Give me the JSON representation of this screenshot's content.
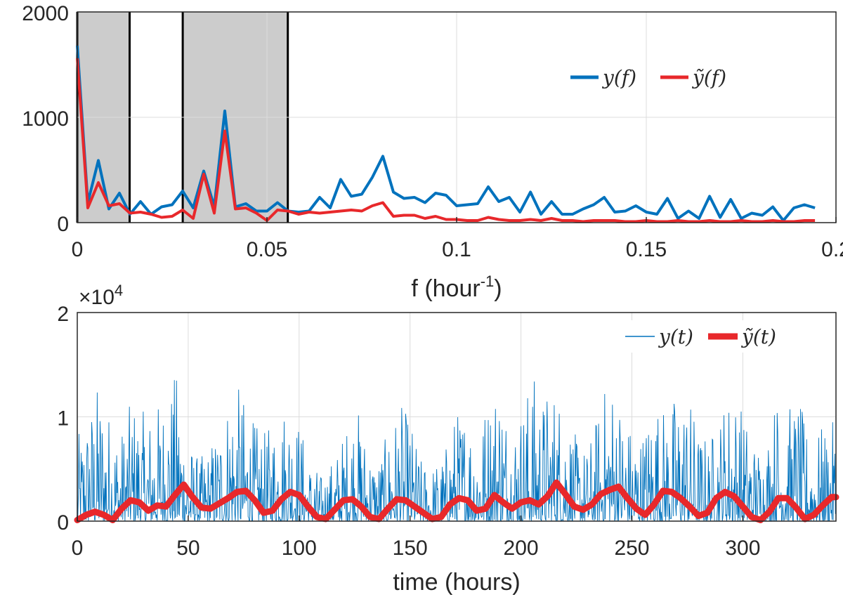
{
  "chart_data": [
    {
      "type": "line",
      "panel": "top",
      "xlabel": "f (hour",
      "xlabel_sup": "-1",
      "xlabel_close": ")",
      "xlim": [
        0,
        0.2
      ],
      "ylim": [
        0,
        2000
      ],
      "xticks": [
        0,
        0.05,
        0.1,
        0.15,
        0.2
      ],
      "xtick_labels": [
        "0",
        "0.05",
        "0.1",
        "0.15",
        "0.2"
      ],
      "yticks": [
        0,
        1000,
        2000
      ],
      "ytick_labels": [
        "0",
        "1000",
        "2000"
      ],
      "grid": true,
      "legend": "top-right",
      "legend_entries": [
        "y(f)",
        "ỹ(f)"
      ],
      "shaded_bands": [
        [
          0,
          0.0138
        ],
        [
          0.0278,
          0.0555
        ]
      ],
      "band_lines": [
        0,
        0.0138,
        0.0278,
        0.0555
      ],
      "x_step": 0.002778,
      "series": [
        {
          "name": "y(f)",
          "color": "#0072BD",
          "values": [
            1680,
            190,
            590,
            130,
            280,
            80,
            200,
            80,
            150,
            170,
            300,
            140,
            490,
            150,
            1060,
            150,
            180,
            110,
            110,
            190,
            110,
            100,
            110,
            240,
            140,
            410,
            250,
            270,
            430,
            630,
            290,
            230,
            240,
            190,
            280,
            260,
            160,
            170,
            180,
            340,
            200,
            240,
            100,
            290,
            80,
            200,
            80,
            80,
            130,
            170,
            240,
            100,
            110,
            160,
            100,
            80,
            230,
            40,
            110,
            40,
            250,
            50,
            220,
            40,
            90,
            70,
            150,
            20,
            140,
            170,
            140
          ]
        },
        {
          "name": "ỹ(f)",
          "color": "#E8282B",
          "values": [
            1560,
            140,
            380,
            160,
            180,
            90,
            100,
            80,
            50,
            60,
            120,
            40,
            460,
            90,
            870,
            130,
            140,
            90,
            20,
            120,
            110,
            80,
            100,
            90,
            100,
            110,
            120,
            110,
            160,
            190,
            60,
            70,
            70,
            40,
            60,
            30,
            30,
            20,
            20,
            50,
            30,
            20,
            20,
            30,
            20,
            40,
            20,
            20,
            10,
            20,
            20,
            20,
            10,
            10,
            20,
            10,
            10,
            20,
            10,
            10,
            20,
            10,
            10,
            20,
            10,
            10,
            20,
            10,
            10,
            20,
            20
          ]
        }
      ]
    },
    {
      "type": "line",
      "panel": "bottom",
      "xlabel": "time (hours)",
      "ylabel": "",
      "exponent_label": "×10",
      "exponent_sup": "4",
      "xlim": [
        0,
        342
      ],
      "ylim": [
        0,
        20000
      ],
      "xticks": [
        0,
        50,
        100,
        150,
        200,
        250,
        300
      ],
      "xtick_labels": [
        "0",
        "50",
        "100",
        "150",
        "200",
        "250",
        "300"
      ],
      "yticks": [
        0,
        10000,
        20000
      ],
      "ytick_labels": [
        "0",
        "1",
        "2"
      ],
      "grid": true,
      "legend": "top-right",
      "legend_entries": [
        "y(t)",
        "ỹ(t)"
      ],
      "series": [
        {
          "name": "y(t)",
          "color": "#0072BD",
          "x_step": 0.25,
          "envelope_hours": [
            0,
            5,
            10,
            15,
            20,
            25,
            30,
            35,
            40,
            45,
            50,
            55,
            60,
            65,
            70,
            75,
            80,
            85,
            90,
            95,
            100,
            105,
            110,
            115,
            120,
            125,
            130,
            135,
            140,
            145,
            150,
            155,
            160,
            165,
            170,
            175,
            180,
            185,
            190,
            195,
            200,
            205,
            210,
            215,
            220,
            225,
            230,
            235,
            240,
            245,
            250,
            255,
            260,
            265,
            270,
            275,
            280,
            285,
            290,
            295,
            300,
            305,
            310,
            315,
            320,
            325,
            330,
            335,
            340,
            342
          ],
          "envelope_values": [
            8000,
            11000,
            13800,
            10500,
            9000,
            12000,
            10500,
            11000,
            13000,
            14500,
            8000,
            6000,
            7500,
            10500,
            14000,
            12000,
            9500,
            8500,
            11000,
            12500,
            10000,
            6000,
            4500,
            6000,
            8500,
            12000,
            8500,
            6000,
            8500,
            11500,
            10000,
            6000,
            5500,
            6500,
            10500,
            11500,
            10000,
            12000,
            15300,
            10000,
            11500,
            14600,
            12500,
            13500,
            12000,
            8000,
            7000,
            11000,
            14800,
            12000,
            9000,
            9000,
            12500,
            11000,
            12500,
            13000,
            9000,
            8000,
            11000,
            13500,
            11000,
            8000,
            7500,
            12500,
            11000,
            12000,
            8000,
            9000,
            9500,
            9500
          ]
        },
        {
          "name": "ỹ(t)",
          "color": "#E8282B",
          "x": [
            0,
            4,
            8,
            12,
            16,
            20,
            24,
            28,
            32,
            36,
            40,
            44,
            48,
            52,
            56,
            60,
            64,
            68,
            72,
            76,
            80,
            84,
            88,
            92,
            96,
            100,
            104,
            108,
            112,
            116,
            120,
            124,
            128,
            132,
            136,
            140,
            144,
            148,
            152,
            156,
            160,
            164,
            168,
            172,
            176,
            180,
            184,
            188,
            192,
            196,
            200,
            204,
            208,
            212,
            216,
            220,
            224,
            228,
            232,
            236,
            240,
            244,
            248,
            252,
            256,
            260,
            264,
            268,
            272,
            276,
            280,
            284,
            288,
            292,
            296,
            300,
            304,
            308,
            312,
            316,
            320,
            324,
            328,
            332,
            336,
            340,
            342
          ],
          "values": [
            100,
            600,
            900,
            600,
            100,
            1200,
            2000,
            1800,
            1000,
            1500,
            1400,
            2500,
            3500,
            2300,
            1300,
            1200,
            1700,
            2200,
            2800,
            2900,
            2000,
            800,
            1000,
            2100,
            2800,
            2500,
            1400,
            400,
            200,
            1100,
            2000,
            2100,
            1400,
            400,
            200,
            1200,
            2100,
            2000,
            1400,
            800,
            200,
            400,
            1600,
            2200,
            2000,
            1000,
            1200,
            2500,
            1800,
            1200,
            1800,
            2000,
            1600,
            2400,
            3700,
            2600,
            1400,
            1100,
            1600,
            2600,
            3000,
            3300,
            2200,
            1200,
            600,
            1600,
            2900,
            2800,
            2200,
            1400,
            500,
            800,
            2200,
            2800,
            2400,
            1400,
            400,
            100,
            900,
            2200,
            2200,
            1300,
            200,
            600,
            1500,
            2300,
            2300
          ]
        }
      ]
    }
  ]
}
